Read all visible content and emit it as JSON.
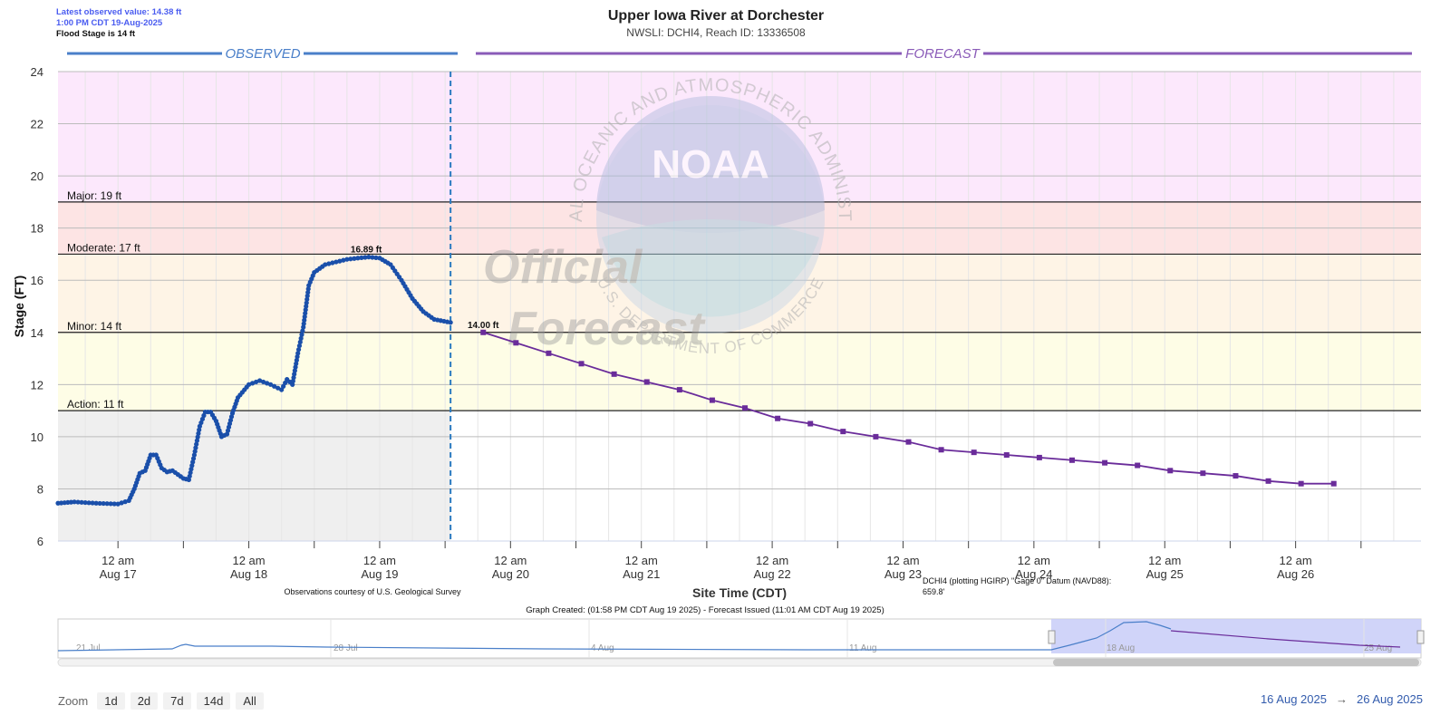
{
  "header": {
    "latest_value": "Latest observed value: 14.38 ft",
    "latest_time": "1:00 PM CDT 19-Aug-2025",
    "flood_stage": "Flood Stage is 14 ft"
  },
  "zoom": {
    "label": "Zoom",
    "buttons": [
      "1d",
      "2d",
      "7d",
      "14d",
      "All"
    ]
  },
  "range": {
    "from": "16 Aug 2025",
    "arrow": "→",
    "to": "26 Aug 2025"
  },
  "colors": {
    "observed": "#1a4faa",
    "forecast": "#6a2c9a",
    "major_band": "#fce8fc",
    "moderate_band": "#fde4e4",
    "minor_band": "#fef4e6",
    "action_band": "#fefde6",
    "observed_bg": "#efefef"
  },
  "chart_data": {
    "type": "line",
    "title": "Upper Iowa River at Dorchester",
    "subtitle": "NWSLI: DCHI4, Reach ID: 13336508",
    "ylabel": "Stage (FT)",
    "xlabel": "Site Time (CDT)",
    "ylim": [
      6,
      24
    ],
    "yticks": [
      6,
      8,
      10,
      12,
      14,
      16,
      18,
      20,
      22,
      24
    ],
    "x_range": [
      "2025-08-16 13:00",
      "2025-08-26 23:00"
    ],
    "x_tick_labels": [
      {
        "time": "12 am",
        "date": "Aug 17"
      },
      {
        "time": "12 am",
        "date": "Aug 18"
      },
      {
        "time": "12 am",
        "date": "Aug 19"
      },
      {
        "time": "12 am",
        "date": "Aug 20"
      },
      {
        "time": "12 am",
        "date": "Aug 21"
      },
      {
        "time": "12 am",
        "date": "Aug 22"
      },
      {
        "time": "12 am",
        "date": "Aug 23"
      },
      {
        "time": "12 am",
        "date": "Aug 24"
      },
      {
        "time": "12 am",
        "date": "Aug 25"
      },
      {
        "time": "12 am",
        "date": "Aug 26"
      }
    ],
    "section_labels": {
      "observed": "OBSERVED",
      "forecast": "FORECAST"
    },
    "now": "2025-08-19 13:00",
    "thresholds": [
      {
        "label": "Action: 11 ft",
        "value": 11
      },
      {
        "label": "Minor: 14 ft",
        "value": 14
      },
      {
        "label": "Moderate: 17 ft",
        "value": 17
      },
      {
        "label": "Major: 19 ft",
        "value": 19
      }
    ],
    "series": [
      {
        "name": "Observed",
        "points": [
          [
            "2025-08-16 13:00",
            7.45
          ],
          [
            "2025-08-16 16:00",
            7.5
          ],
          [
            "2025-08-16 20:00",
            7.45
          ],
          [
            "2025-08-17 00:00",
            7.42
          ],
          [
            "2025-08-17 02:00",
            7.55
          ],
          [
            "2025-08-17 03:00",
            8.0
          ],
          [
            "2025-08-17 04:00",
            8.6
          ],
          [
            "2025-08-17 05:00",
            8.7
          ],
          [
            "2025-08-17 06:00",
            9.3
          ],
          [
            "2025-08-17 07:00",
            9.3
          ],
          [
            "2025-08-17 08:00",
            8.8
          ],
          [
            "2025-08-17 09:00",
            8.65
          ],
          [
            "2025-08-17 10:00",
            8.7
          ],
          [
            "2025-08-17 12:00",
            8.4
          ],
          [
            "2025-08-17 13:00",
            8.35
          ],
          [
            "2025-08-17 14:00",
            9.3
          ],
          [
            "2025-08-17 15:00",
            10.4
          ],
          [
            "2025-08-17 16:00",
            10.95
          ],
          [
            "2025-08-17 17:00",
            10.95
          ],
          [
            "2025-08-17 18:00",
            10.6
          ],
          [
            "2025-08-17 19:00",
            10.0
          ],
          [
            "2025-08-17 20:00",
            10.1
          ],
          [
            "2025-08-17 21:00",
            10.9
          ],
          [
            "2025-08-17 22:00",
            11.5
          ],
          [
            "2025-08-18 00:00",
            12.0
          ],
          [
            "2025-08-18 02:00",
            12.15
          ],
          [
            "2025-08-18 04:00",
            12.0
          ],
          [
            "2025-08-18 06:00",
            11.8
          ],
          [
            "2025-08-18 07:00",
            12.2
          ],
          [
            "2025-08-18 08:00",
            12.0
          ],
          [
            "2025-08-18 09:00",
            13.2
          ],
          [
            "2025-08-18 10:00",
            14.2
          ],
          [
            "2025-08-18 11:00",
            15.8
          ],
          [
            "2025-08-18 12:00",
            16.3
          ],
          [
            "2025-08-18 14:00",
            16.6
          ],
          [
            "2025-08-18 16:00",
            16.7
          ],
          [
            "2025-08-18 18:00",
            16.8
          ],
          [
            "2025-08-18 20:00",
            16.85
          ],
          [
            "2025-08-18 22:00",
            16.89
          ],
          [
            "2025-08-19 00:00",
            16.85
          ],
          [
            "2025-08-19 02:00",
            16.6
          ],
          [
            "2025-08-19 04:00",
            16.0
          ],
          [
            "2025-08-19 06:00",
            15.3
          ],
          [
            "2025-08-19 08:00",
            14.8
          ],
          [
            "2025-08-19 10:00",
            14.5
          ],
          [
            "2025-08-19 13:00",
            14.38
          ]
        ]
      },
      {
        "name": "Forecast",
        "points": [
          [
            "2025-08-19 19:00",
            14.0
          ],
          [
            "2025-08-20 01:00",
            13.6
          ],
          [
            "2025-08-20 07:00",
            13.2
          ],
          [
            "2025-08-20 13:00",
            12.8
          ],
          [
            "2025-08-20 19:00",
            12.4
          ],
          [
            "2025-08-21 01:00",
            12.1
          ],
          [
            "2025-08-21 07:00",
            11.8
          ],
          [
            "2025-08-21 13:00",
            11.4
          ],
          [
            "2025-08-21 19:00",
            11.1
          ],
          [
            "2025-08-22 01:00",
            10.7
          ],
          [
            "2025-08-22 07:00",
            10.5
          ],
          [
            "2025-08-22 13:00",
            10.2
          ],
          [
            "2025-08-22 19:00",
            10.0
          ],
          [
            "2025-08-23 01:00",
            9.8
          ],
          [
            "2025-08-23 07:00",
            9.5
          ],
          [
            "2025-08-23 13:00",
            9.4
          ],
          [
            "2025-08-23 19:00",
            9.3
          ],
          [
            "2025-08-24 01:00",
            9.2
          ],
          [
            "2025-08-24 07:00",
            9.1
          ],
          [
            "2025-08-24 13:00",
            9.0
          ],
          [
            "2025-08-24 19:00",
            8.9
          ],
          [
            "2025-08-25 01:00",
            8.7
          ],
          [
            "2025-08-25 07:00",
            8.6
          ],
          [
            "2025-08-25 13:00",
            8.5
          ],
          [
            "2025-08-25 19:00",
            8.3
          ],
          [
            "2025-08-26 01:00",
            8.2
          ],
          [
            "2025-08-26 07:00",
            8.2
          ]
        ]
      }
    ],
    "annotations": [
      {
        "text": "16.89 ft",
        "x": "2025-08-18 22:00",
        "y": 16.89
      },
      {
        "text": "14.00 ft",
        "x": "2025-08-19 19:00",
        "y": 14.0
      }
    ],
    "watermark": {
      "ring_text": "NATIONAL OCEANIC AND ATMOSPHERIC ADMINISTRATION",
      "ring_text_bottom": "U.S. DEPARTMENT OF COMMERCE",
      "logo": "NOAA",
      "stamp_line1": "Official",
      "stamp_line2": "Forecast"
    },
    "footnotes": {
      "usgs": "Observations courtesy of U.S. Geological Survey",
      "datum": "DCHI4 (plotting HGIRP) \"Gage 0\" Datum (NAVD88):",
      "datum_value": "659.8'",
      "created": "Graph Created: (01:58 PM CDT Aug 19 2025) - Forecast Issued (11:01 AM CDT Aug 19 2025)"
    },
    "navigator": {
      "labels": [
        "21 Jul",
        "28 Jul",
        "4 Aug",
        "11 Aug",
        "18 Aug",
        "25 Aug"
      ]
    }
  }
}
